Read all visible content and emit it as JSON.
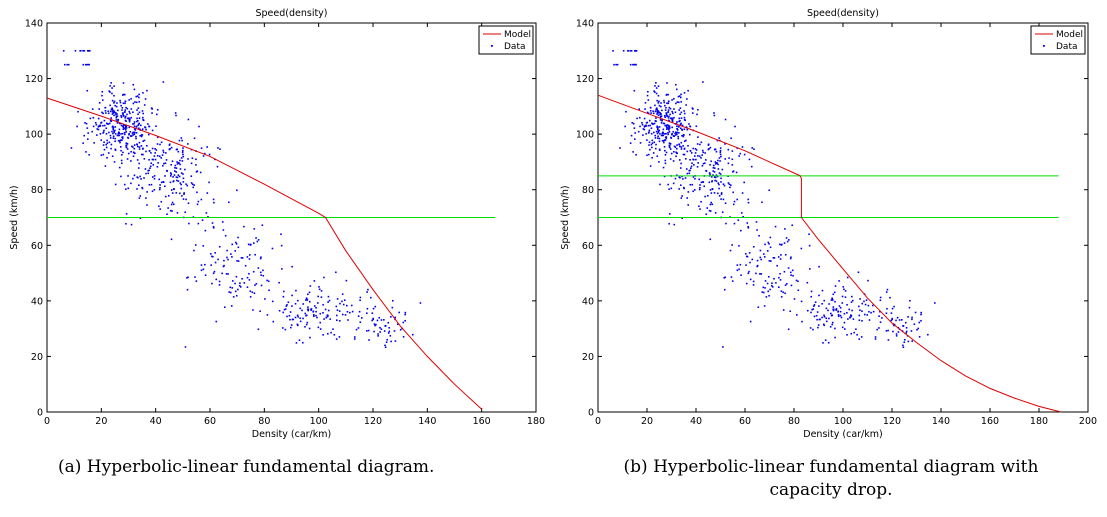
{
  "chart_data": [
    {
      "type": "scatter",
      "title": "Speed(density)",
      "xlabel": "Density (car/km)",
      "ylabel": "Speed (km/h)",
      "xlim": [
        0,
        180
      ],
      "ylim": [
        0,
        140
      ],
      "xticks": [
        "0",
        "20",
        "40",
        "60",
        "80",
        "100",
        "120",
        "140",
        "160",
        "180"
      ],
      "yticks": [
        "0",
        "20",
        "40",
        "60",
        "80",
        "100",
        "120",
        "140"
      ],
      "legend": {
        "placement": "top-right",
        "entries": [
          "Model",
          "Data"
        ]
      },
      "series": [
        {
          "name": "Model",
          "kind": "line",
          "color": "#e00000",
          "points": [
            [
              0,
              113
            ],
            [
              20,
              106.5
            ],
            [
              40,
              99.5
            ],
            [
              60,
              92
            ],
            [
              80,
              82
            ],
            [
              100,
              71.5
            ],
            [
              102.5,
              70
            ],
            [
              110,
              58
            ],
            [
              120,
              44
            ],
            [
              130,
              31
            ],
            [
              140,
              20
            ],
            [
              150,
              10
            ],
            [
              160,
              1
            ]
          ]
        },
        {
          "name": "Data",
          "kind": "scatter",
          "color": "#0000ee",
          "n_points": 900
        }
      ],
      "threshold_lines": [
        {
          "y": 70,
          "x_range": [
            0,
            165
          ],
          "color": "#00dd00"
        }
      ],
      "grid": false
    },
    {
      "type": "scatter",
      "title": "Speed(density)",
      "xlabel": "Density (car/km)",
      "ylabel": "Speed (km/h)",
      "xlim": [
        0,
        200
      ],
      "ylim": [
        0,
        140
      ],
      "xticks": [
        "0",
        "20",
        "40",
        "60",
        "80",
        "100",
        "120",
        "140",
        "160",
        "180",
        "200"
      ],
      "yticks": [
        "0",
        "20",
        "40",
        "60",
        "80",
        "100",
        "120",
        "140"
      ],
      "legend": {
        "placement": "top-right",
        "entries": [
          "Model",
          "Data"
        ]
      },
      "series": [
        {
          "name": "Model",
          "kind": "line",
          "color": "#e00000",
          "points": [
            [
              0,
              114
            ],
            [
              20,
              107.5
            ],
            [
              40,
              101
            ],
            [
              60,
              94
            ],
            [
              70,
              90
            ],
            [
              80,
              86
            ],
            [
              82.5,
              85
            ],
            [
              83,
              84
            ],
            [
              83,
              70
            ],
            [
              90,
              62
            ],
            [
              100,
              51.5
            ],
            [
              110,
              41
            ],
            [
              120,
              32
            ],
            [
              130,
              25
            ],
            [
              140,
              18.5
            ],
            [
              150,
              13
            ],
            [
              160,
              8.5
            ],
            [
              170,
              5
            ],
            [
              180,
              2
            ],
            [
              189,
              0
            ]
          ]
        },
        {
          "name": "Data",
          "kind": "scatter",
          "color": "#0000ee",
          "n_points": 900
        }
      ],
      "threshold_lines": [
        {
          "y": 85,
          "x_range": [
            0,
            188
          ],
          "color": "#00dd00"
        },
        {
          "y": 70,
          "x_range": [
            0,
            188
          ],
          "color": "#00dd00"
        }
      ],
      "grid": false
    }
  ],
  "captions": {
    "a": "(a) Hyperbolic-linear fundamental diagram.",
    "b_line1": "(b)  Hyperbolic-linear fundamental diagram with",
    "b_line2": "capacity drop."
  }
}
